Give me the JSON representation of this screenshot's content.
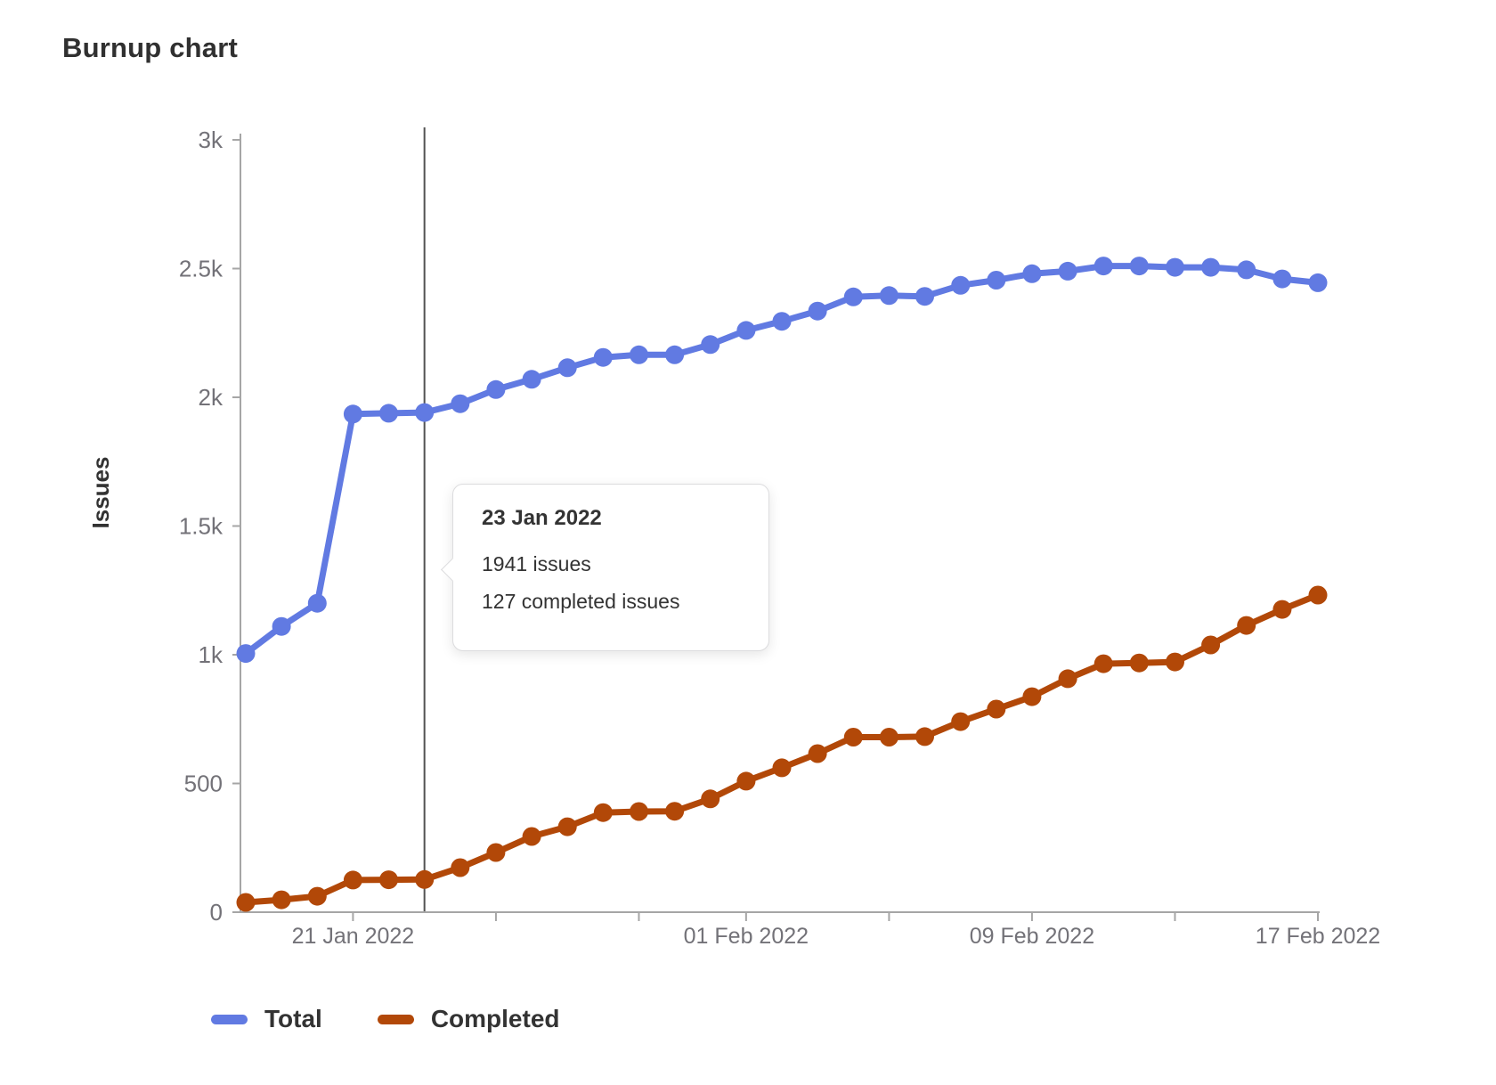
{
  "chart_data": {
    "type": "line",
    "title": "Burnup chart",
    "xlabel": "",
    "ylabel": "Issues",
    "x": [
      "18 Jan 2022",
      "19 Jan 2022",
      "20 Jan 2022",
      "21 Jan 2022",
      "22 Jan 2022",
      "23 Jan 2022",
      "24 Jan 2022",
      "25 Jan 2022",
      "26 Jan 2022",
      "27 Jan 2022",
      "28 Jan 2022",
      "29 Jan 2022",
      "30 Jan 2022",
      "31 Jan 2022",
      "01 Feb 2022",
      "02 Feb 2022",
      "03 Feb 2022",
      "04 Feb 2022",
      "05 Feb 2022",
      "06 Feb 2022",
      "07 Feb 2022",
      "08 Feb 2022",
      "09 Feb 2022",
      "10 Feb 2022",
      "11 Feb 2022",
      "12 Feb 2022",
      "13 Feb 2022",
      "14 Feb 2022",
      "15 Feb 2022",
      "16 Feb 2022",
      "17 Feb 2022"
    ],
    "series": [
      {
        "name": "Total",
        "color": "#617ae2",
        "values": [
          1005,
          1110,
          1200,
          1935,
          1938,
          1941,
          1975,
          2030,
          2070,
          2115,
          2155,
          2165,
          2165,
          2205,
          2260,
          2295,
          2335,
          2390,
          2395,
          2392,
          2435,
          2455,
          2480,
          2490,
          2510,
          2510,
          2505,
          2505,
          2495,
          2460,
          2445
        ]
      },
      {
        "name": "Completed",
        "color": "#b24808",
        "values": [
          38,
          48,
          62,
          125,
          126,
          127,
          173,
          232,
          294,
          332,
          387,
          391,
          392,
          440,
          509,
          561,
          616,
          680,
          680,
          682,
          740,
          789,
          837,
          907,
          965,
          968,
          972,
          1038,
          1114,
          1176,
          1232
        ]
      }
    ],
    "ylim": [
      0,
      3000
    ],
    "y_ticks": [
      {
        "value": 0,
        "label": "0"
      },
      {
        "value": 500,
        "label": "500"
      },
      {
        "value": 1000,
        "label": "1k"
      },
      {
        "value": 1500,
        "label": "1.5k"
      },
      {
        "value": 2000,
        "label": "2k"
      },
      {
        "value": 2500,
        "label": "2.5k"
      },
      {
        "value": 3000,
        "label": "3k"
      }
    ],
    "x_ticks": [
      {
        "day": 3,
        "label": "21 Jan 2022"
      },
      {
        "day": 7,
        "label": ""
      },
      {
        "day": 11,
        "label": ""
      },
      {
        "day": 14,
        "label": "01 Feb 2022"
      },
      {
        "day": 18,
        "label": ""
      },
      {
        "day": 22,
        "label": "09 Feb 2022"
      },
      {
        "day": 26,
        "label": ""
      },
      {
        "day": 30,
        "label": "17 Feb 2022"
      }
    ],
    "grid": false,
    "legend_position": "bottom-left",
    "annotation_line": {
      "day": 5,
      "date": "23 Jan 2022"
    }
  },
  "tooltip": {
    "title": "23 Jan 2022",
    "line1": "1941 issues",
    "line2": "127 completed issues"
  },
  "colors": {
    "axis": "#a6a6a6",
    "tick_label": "#737278",
    "heading_text": "#303030",
    "annotation_line": "#525252",
    "tooltip_border": "#dcdcde",
    "total": "#617ae2",
    "completed": "#b24808"
  }
}
